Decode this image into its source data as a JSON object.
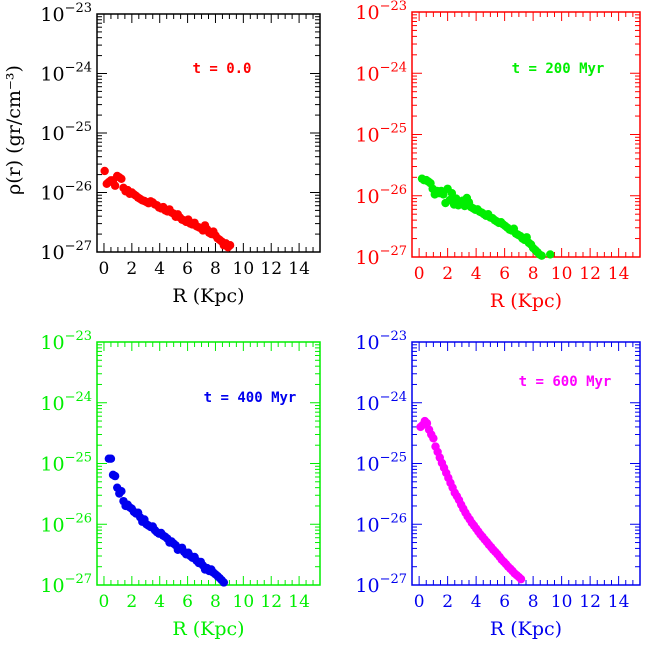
{
  "figure": {
    "ylabel": "ρ(r)  (gr/cm⁻³)"
  },
  "chart_data": [
    {
      "type": "scatter",
      "annotation": "t = 0.0",
      "xlabel": "R (Kpc)",
      "ylabel": "ρ(r)  (gr/cm⁻³)",
      "xlim": [
        -0.5,
        15.5
      ],
      "ylim": [
        1e-27,
        1e-23
      ],
      "y_scale": "log",
      "x_ticks": [
        0,
        2,
        4,
        6,
        8,
        10,
        12,
        14
      ],
      "y_ticks": [
        "10⁻²⁷",
        "10⁻²⁶",
        "10⁻²⁵",
        "10⁻²⁴",
        "10⁻²³"
      ],
      "frame_color": "#000000",
      "point_color": "#ff0000",
      "series": [
        {
          "x": [
            0.05,
            0.2,
            0.35,
            0.5,
            0.65,
            0.8,
            0.95,
            1.1,
            1.25,
            1.4,
            1.55,
            1.7,
            1.85,
            2.0,
            2.15,
            2.3,
            2.45,
            2.6,
            2.75,
            2.9,
            3.05,
            3.2,
            3.35,
            3.5,
            3.65,
            3.8,
            3.95,
            4.1,
            4.25,
            4.4,
            4.55,
            4.7,
            4.85,
            5.0,
            5.15,
            5.3,
            5.45,
            5.6,
            5.75,
            5.9,
            6.05,
            6.2,
            6.35,
            6.5,
            6.65,
            6.8,
            6.95,
            7.1,
            7.25,
            7.4,
            7.55,
            7.7,
            7.85,
            8.0,
            8.15,
            8.3,
            8.45,
            8.6,
            8.75,
            8.9,
            9.05
          ],
          "y": [
            2.3e-26,
            1.4e-26,
            1.5e-26,
            1.6e-26,
            1.6e-26,
            1.3e-26,
            1.9e-26,
            1.8e-26,
            1.7e-26,
            1.2e-26,
            1.05e-26,
            1.1e-26,
            9.5e-27,
            1e-26,
            9.3e-27,
            8.8e-27,
            8.2e-27,
            7.8e-27,
            7.4e-27,
            7.2e-27,
            6.9e-27,
            6.6e-27,
            7.1e-27,
            6.8e-27,
            6.3e-27,
            6.1e-27,
            5.6e-27,
            5.4e-27,
            5.7e-27,
            5e-27,
            4.8e-27,
            5.2e-27,
            4.6e-27,
            4.4e-27,
            3.9e-27,
            4.3e-27,
            3.8e-27,
            3.5e-27,
            3.4e-27,
            3.2e-27,
            3.5e-27,
            3e-27,
            2.9e-27,
            3.1e-27,
            2.7e-27,
            2.6e-27,
            2.5e-27,
            2.3e-27,
            2.8e-27,
            2.4e-27,
            2.1e-27,
            2e-27,
            2.2e-27,
            1.9e-27,
            1.7e-27,
            1.6e-27,
            1.5e-27,
            1.3e-27,
            1.4e-27,
            1.2e-27,
            1.3e-27
          ]
        }
      ]
    },
    {
      "type": "scatter",
      "annotation": "t = 200 Myr",
      "xlabel": "R (Kpc)",
      "xlim": [
        -0.5,
        15.5
      ],
      "ylim": [
        1e-27,
        1e-23
      ],
      "y_scale": "log",
      "x_ticks": [
        0,
        2,
        4,
        6,
        8,
        10,
        12,
        14
      ],
      "y_ticks": [
        "10⁻²⁷",
        "10⁻²⁶",
        "10⁻²⁵",
        "10⁻²⁴",
        "10⁻²³"
      ],
      "frame_color": "#ff0000",
      "point_color": "#00ee00",
      "series": [
        {
          "x": [
            0.2,
            0.35,
            0.5,
            0.65,
            0.8,
            0.95,
            1.1,
            1.25,
            1.4,
            1.55,
            1.7,
            1.85,
            2.0,
            2.15,
            2.3,
            2.45,
            2.6,
            2.75,
            2.9,
            3.05,
            3.2,
            3.35,
            3.5,
            3.65,
            3.8,
            3.95,
            4.1,
            4.25,
            4.4,
            4.55,
            4.7,
            4.85,
            5.0,
            5.15,
            5.3,
            5.45,
            5.6,
            5.75,
            5.9,
            6.05,
            6.2,
            6.35,
            6.5,
            6.65,
            6.8,
            6.95,
            7.1,
            7.25,
            7.4,
            7.55,
            7.7,
            7.85,
            8.0,
            8.15,
            8.3,
            8.45,
            8.6,
            9.2
          ],
          "y": [
            1.9e-26,
            1.8e-26,
            1.8e-26,
            1.7e-26,
            1.6e-26,
            1.3e-26,
            1.05e-26,
            1.2e-26,
            1.1e-26,
            1.2e-26,
            1.05e-26,
            7.6e-27,
            1.3e-26,
            8.5e-27,
            1.1e-26,
            7.2e-27,
            9e-27,
            7e-27,
            7.5e-27,
            8.3e-27,
            6.8e-27,
            9.2e-27,
            7.8e-27,
            6.5e-27,
            6.2e-27,
            5.9e-27,
            6e-27,
            5.5e-27,
            5.3e-27,
            5e-27,
            4.7e-27,
            5e-27,
            4.4e-27,
            4.3e-27,
            4e-27,
            3.8e-27,
            3.6e-27,
            3.7e-27,
            3.4e-27,
            3.2e-27,
            3e-27,
            2.8e-27,
            2.7e-27,
            2.9e-27,
            2.4e-27,
            2.3e-27,
            2.2e-27,
            2e-27,
            1.9e-27,
            2.1e-27,
            1.7e-27,
            1.6e-27,
            1.4e-27,
            1.3e-27,
            1.2e-27,
            1.1e-27,
            1.05e-27,
            1.1e-27
          ]
        }
      ]
    },
    {
      "type": "scatter",
      "annotation": "t = 400 Myr",
      "xlabel": "R (Kpc)",
      "xlim": [
        -0.5,
        15.5
      ],
      "ylim": [
        1e-27,
        1e-23
      ],
      "y_scale": "log",
      "x_ticks": [
        0,
        2,
        4,
        6,
        8,
        10,
        12,
        14
      ],
      "y_ticks": [
        "10⁻²⁷",
        "10⁻²⁶",
        "10⁻²⁵",
        "10⁻²⁴",
        "10⁻²³"
      ],
      "frame_color": "#00ee00",
      "point_color": "#0000ee",
      "series": [
        {
          "x": [
            0.35,
            0.5,
            0.65,
            0.8,
            0.95,
            1.1,
            1.25,
            1.4,
            1.55,
            1.7,
            1.85,
            2.0,
            2.15,
            2.3,
            2.45,
            2.6,
            2.75,
            2.9,
            3.05,
            3.2,
            3.35,
            3.5,
            3.65,
            3.8,
            3.95,
            4.1,
            4.25,
            4.4,
            4.55,
            4.7,
            4.85,
            5.0,
            5.15,
            5.3,
            5.45,
            5.6,
            5.75,
            5.9,
            6.05,
            6.2,
            6.35,
            6.5,
            6.65,
            6.8,
            6.95,
            7.1,
            7.25,
            7.4,
            7.55,
            7.7,
            7.85,
            8.0,
            8.15,
            8.3,
            8.45,
            8.6
          ],
          "y": [
            1.2e-25,
            1.2e-25,
            6.5e-26,
            6.2e-26,
            4e-26,
            3.2e-26,
            3.5e-26,
            2.4e-26,
            2e-26,
            2.1e-26,
            1.9e-26,
            1.8e-26,
            1.6e-26,
            1.5e-26,
            1.55e-26,
            1.3e-26,
            1.1e-26,
            1.2e-26,
            1e-26,
            9.5e-27,
            9e-27,
            9.2e-27,
            8e-27,
            7.4e-27,
            7e-27,
            7.2e-27,
            6.5e-27,
            6.2e-27,
            5.8e-27,
            5e-27,
            5.2e-27,
            4.8e-27,
            4.5e-27,
            3.8e-27,
            4e-27,
            4.1e-27,
            3.5e-27,
            3.2e-27,
            3.4e-27,
            3e-27,
            2.8e-27,
            2.9e-27,
            2.5e-27,
            2.3e-27,
            2.4e-27,
            2.1e-27,
            1.8e-27,
            1.9e-27,
            1.7e-27,
            1.8e-27,
            1.6e-27,
            1.5e-27,
            1.4e-27,
            1.3e-27,
            1.2e-27,
            1.1e-27
          ]
        }
      ]
    },
    {
      "type": "scatter",
      "annotation": "t = 600 Myr",
      "xlabel": "R (Kpc)",
      "xlim": [
        -0.5,
        15.5
      ],
      "ylim": [
        1e-27,
        1e-23
      ],
      "y_scale": "log",
      "x_ticks": [
        0,
        2,
        4,
        6,
        8,
        10,
        12,
        14
      ],
      "y_ticks": [
        "10⁻²⁷",
        "10⁻²⁶",
        "10⁻²⁵",
        "10⁻²⁴",
        "10⁻²³"
      ],
      "frame_color": "#0000ee",
      "point_color": "#ff00ff",
      "series": [
        {
          "x": [
            0.1,
            0.25,
            0.4,
            0.55,
            0.7,
            0.85,
            1.0,
            1.15,
            1.3,
            1.45,
            1.6,
            1.75,
            1.9,
            2.05,
            2.2,
            2.35,
            2.5,
            2.65,
            2.8,
            2.95,
            3.1,
            3.25,
            3.4,
            3.55,
            3.7,
            3.85,
            4.0,
            4.15,
            4.3,
            4.45,
            4.6,
            4.75,
            4.9,
            5.05,
            5.2,
            5.35,
            5.5,
            5.65,
            5.8,
            5.95,
            6.1,
            6.25,
            6.4,
            6.55,
            6.7,
            6.85,
            7.0,
            7.15
          ],
          "y": [
            4e-25,
            4.3e-25,
            5e-25,
            4.6e-25,
            3.6e-25,
            3e-25,
            2.6e-25,
            1.9e-25,
            1.55e-25,
            1.25e-25,
            1.02e-25,
            8.5e-26,
            7e-26,
            5.8e-26,
            4.8e-26,
            4e-26,
            3.3e-26,
            2.9e-26,
            2.5e-26,
            2.1e-26,
            1.8e-26,
            1.55e-26,
            1.35e-26,
            1.2e-26,
            1.05e-26,
            9.5e-27,
            8.5e-27,
            7.6e-27,
            6.8e-27,
            6.2e-27,
            5.6e-27,
            5.1e-27,
            4.6e-27,
            4.2e-27,
            3.8e-27,
            3.5e-27,
            3.2e-27,
            2.9e-27,
            2.6e-27,
            2.4e-27,
            2.2e-27,
            2e-27,
            1.85e-27,
            1.7e-27,
            1.55e-27,
            1.45e-27,
            1.35e-27,
            1.25e-27
          ]
        }
      ]
    }
  ]
}
